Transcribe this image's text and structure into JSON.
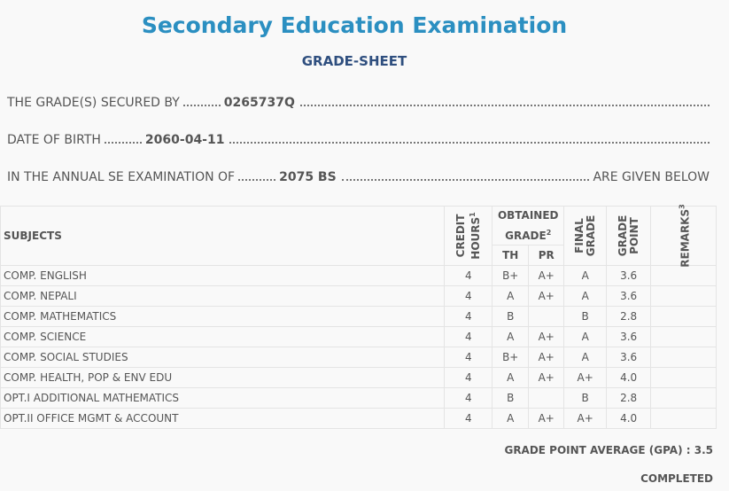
{
  "header": {
    "title": "Secondary Education Examination",
    "subtitle": "GRADE-SHEET"
  },
  "info": [
    {
      "label": "THE GRADE(S) SECURED BY",
      "value": "0265737Q"
    },
    {
      "label": "DATE OF BIRTH",
      "value": "2060-04-11"
    },
    {
      "label": "IN THE ANNUAL SE EXAMINATION OF",
      "value": "2075 BS",
      "suffix": "ARE GIVEN BELOW"
    }
  ],
  "table": {
    "columns": {
      "subjects": "SUBJECTS",
      "credit_hours": {
        "lines": [
          "CREDIT",
          "HOURS"
        ],
        "note": "1"
      },
      "obtained_grade": {
        "lines": [
          "OBTAINED",
          "GRADE"
        ],
        "note": "2"
      },
      "th": "TH",
      "pr": "PR",
      "final_grade": {
        "lines": [
          "FINAL",
          "GRADE"
        ]
      },
      "grade_point": {
        "lines": [
          "GRADE",
          "POINT"
        ]
      },
      "remarks": {
        "lines": [
          "REMARKS"
        ],
        "note": "3"
      }
    },
    "rows": [
      [
        "COMP. ENGLISH",
        "4",
        "B+",
        "A+",
        "A",
        "3.6"
      ],
      [
        "COMP. NEPALI",
        "4",
        "A",
        "A+",
        "A",
        "3.6"
      ],
      [
        "COMP. MATHEMATICS",
        "4",
        "B",
        null,
        "B",
        "2.8"
      ],
      [
        "COMP. SCIENCE",
        "4",
        "A",
        "A+",
        "A",
        "3.6"
      ],
      [
        "COMP. SOCIAL STUDIES",
        "4",
        "B+",
        "A+",
        "A",
        "3.6"
      ],
      [
        "COMP. HEALTH, POP & ENV EDU",
        "4",
        "A",
        "A+",
        "A+",
        "4.0"
      ],
      [
        "OPT.I ADDITIONAL MATHEMATICS",
        "4",
        "B",
        null,
        "B",
        "2.8"
      ],
      [
        "OPT.II OFFICE MGMT & ACCOUNT",
        "4",
        "A",
        "A+",
        "A+",
        "4.0"
      ]
    ]
  },
  "footer": {
    "gpa_label": "GRADE POINT AVERAGE (GPA) :",
    "gpa": "3.5",
    "status": "COMPLETED"
  }
}
